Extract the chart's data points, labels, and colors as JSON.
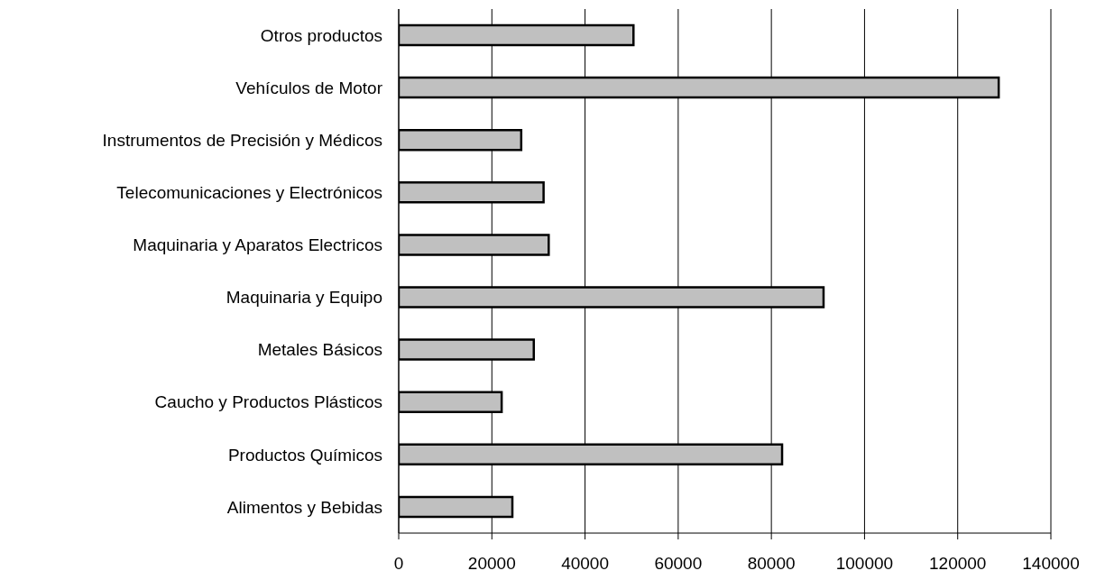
{
  "chart_data": {
    "type": "bar",
    "orientation": "horizontal",
    "categories": [
      "Otros productos",
      "Vehículos de Motor",
      "Instrumentos de Precisión y Médicos",
      "Telecomunicaciones y Electrónicos",
      "Maquinaria y Aparatos Electricos",
      "Maquinaria y Equipo",
      "Metales Básicos",
      "Caucho y Productos Plásticos",
      "Productos Químicos",
      "Alimentos y Bebidas"
    ],
    "values": [
      50400,
      128800,
      26300,
      31100,
      32200,
      91200,
      29000,
      22100,
      82300,
      24400
    ],
    "color": "#c0c0c0",
    "xlim": [
      0,
      140000
    ],
    "xticks": [
      0,
      20000,
      40000,
      60000,
      80000,
      100000,
      120000,
      140000
    ],
    "grid": "x"
  }
}
